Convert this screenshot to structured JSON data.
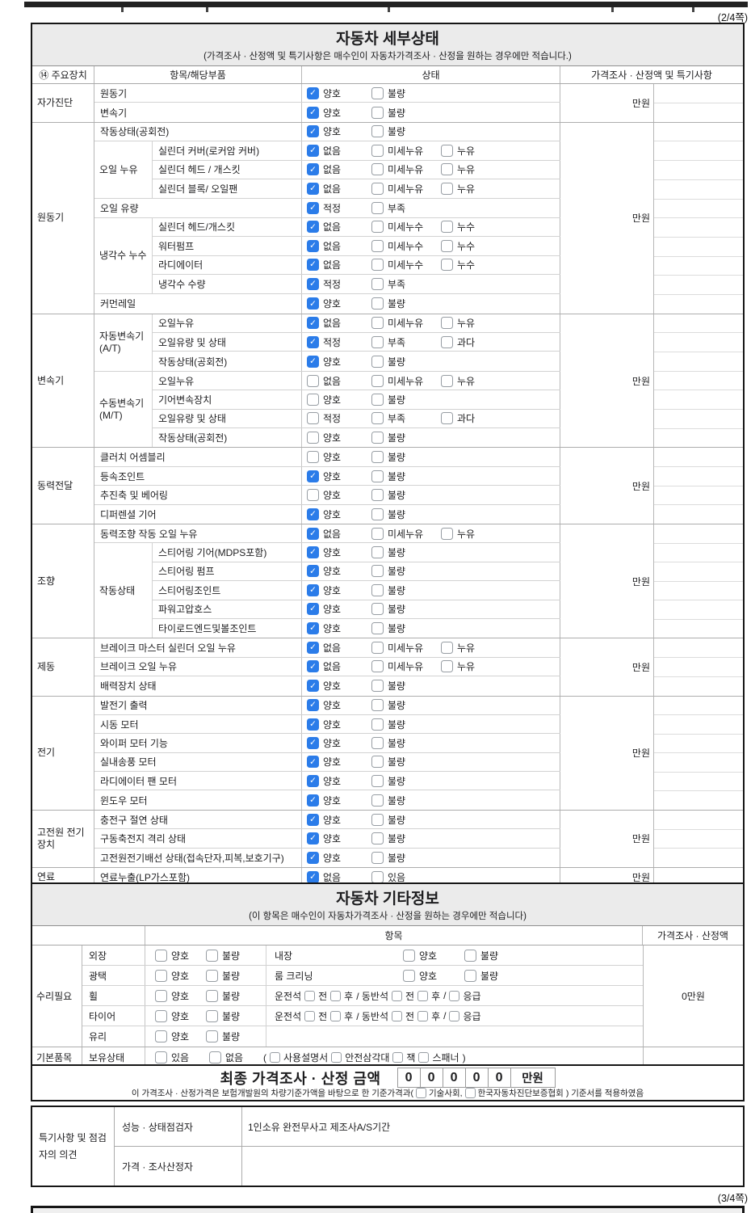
{
  "page": {
    "top_label": "(2/4쪽)",
    "bottom_label": "(3/4쪽)"
  },
  "colors": {
    "checkbox_checked": "#2b7ce9",
    "band_bg": "#ebebeb",
    "border_dark": "#161616"
  },
  "detail": {
    "title": "자동차 세부상태",
    "subtitle": "(가격조사 · 산정액 및 특기사항은 매수인이 자동차가격조사 · 산정을 원하는 경우에만 적습니다.)",
    "col_device": "⑭ 주요장치",
    "col_item": "항목/해당부품",
    "col_status": "상태",
    "col_price": "가격조사 · 산정액 및 특기사항",
    "groups": [
      {
        "name": "자가진단",
        "price": "만원",
        "entries": [
          {
            "item": "원동기",
            "options": [
              {
                "label": "양호",
                "checked": true
              },
              {
                "label": "불량",
                "checked": false
              }
            ]
          },
          {
            "item": "변속기",
            "options": [
              {
                "label": "양호",
                "checked": true
              },
              {
                "label": "불량",
                "checked": false
              }
            ]
          }
        ]
      },
      {
        "name": "원동기",
        "price": "만원",
        "entries": [
          {
            "item": "작동상태(공회전)",
            "options": [
              {
                "label": "양호",
                "checked": true
              },
              {
                "label": "불량",
                "checked": false
              }
            ]
          },
          {
            "sub": "오일 누유",
            "rows": [
              {
                "item": "실린더 커버(로커암 커버)",
                "options": [
                  {
                    "label": "없음",
                    "checked": true
                  },
                  {
                    "label": "미세누유",
                    "checked": false
                  },
                  {
                    "label": "누유",
                    "checked": false
                  }
                ]
              },
              {
                "item": "실린더 헤드 / 개스킷",
                "options": [
                  {
                    "label": "없음",
                    "checked": true
                  },
                  {
                    "label": "미세누유",
                    "checked": false
                  },
                  {
                    "label": "누유",
                    "checked": false
                  }
                ]
              },
              {
                "item": "실린더 블록/ 오일팬",
                "options": [
                  {
                    "label": "없음",
                    "checked": true
                  },
                  {
                    "label": "미세누유",
                    "checked": false
                  },
                  {
                    "label": "누유",
                    "checked": false
                  }
                ]
              }
            ]
          },
          {
            "item": "오일 유량",
            "options": [
              {
                "label": "적정",
                "checked": true
              },
              {
                "label": "부족",
                "checked": false
              }
            ]
          },
          {
            "sub": "냉각수 누수",
            "rows": [
              {
                "item": "실린더 헤드/개스킷",
                "options": [
                  {
                    "label": "없음",
                    "checked": true
                  },
                  {
                    "label": "미세누수",
                    "checked": false
                  },
                  {
                    "label": "누수",
                    "checked": false
                  }
                ]
              },
              {
                "item": "워터펌프",
                "options": [
                  {
                    "label": "없음",
                    "checked": true
                  },
                  {
                    "label": "미세누수",
                    "checked": false
                  },
                  {
                    "label": "누수",
                    "checked": false
                  }
                ]
              },
              {
                "item": "라디에이터",
                "options": [
                  {
                    "label": "없음",
                    "checked": true
                  },
                  {
                    "label": "미세누수",
                    "checked": false
                  },
                  {
                    "label": "누수",
                    "checked": false
                  }
                ]
              },
              {
                "item": "냉각수 수량",
                "options": [
                  {
                    "label": "적정",
                    "checked": true
                  },
                  {
                    "label": "부족",
                    "checked": false
                  }
                ]
              }
            ]
          },
          {
            "item": "커먼레일",
            "options": [
              {
                "label": "양호",
                "checked": true
              },
              {
                "label": "불량",
                "checked": false
              }
            ]
          }
        ]
      },
      {
        "name": "변속기",
        "price": "만원",
        "entries": [
          {
            "sub": "자동변속기 (A/T)",
            "rows": [
              {
                "item": "오일누유",
                "options": [
                  {
                    "label": "없음",
                    "checked": true
                  },
                  {
                    "label": "미세누유",
                    "checked": false
                  },
                  {
                    "label": "누유",
                    "checked": false
                  }
                ]
              },
              {
                "item": "오일유량 및 상태",
                "options": [
                  {
                    "label": "적정",
                    "checked": true
                  },
                  {
                    "label": "부족",
                    "checked": false
                  },
                  {
                    "label": "과다",
                    "checked": false
                  }
                ]
              },
              {
                "item": "작동상태(공회전)",
                "options": [
                  {
                    "label": "양호",
                    "checked": true
                  },
                  {
                    "label": "불량",
                    "checked": false
                  }
                ]
              }
            ]
          },
          {
            "sub": "수동변속기 (M/T)",
            "rows": [
              {
                "item": "오일누유",
                "options": [
                  {
                    "label": "없음",
                    "checked": false
                  },
                  {
                    "label": "미세누유",
                    "checked": false
                  },
                  {
                    "label": "누유",
                    "checked": false
                  }
                ]
              },
              {
                "item": "기어변속장치",
                "options": [
                  {
                    "label": "양호",
                    "checked": false
                  },
                  {
                    "label": "불량",
                    "checked": false
                  }
                ]
              },
              {
                "item": "오일유량 및 상태",
                "options": [
                  {
                    "label": "적정",
                    "checked": false
                  },
                  {
                    "label": "부족",
                    "checked": false
                  },
                  {
                    "label": "과다",
                    "checked": false
                  }
                ]
              },
              {
                "item": "작동상태(공회전)",
                "options": [
                  {
                    "label": "양호",
                    "checked": false
                  },
                  {
                    "label": "불량",
                    "checked": false
                  }
                ]
              }
            ]
          }
        ]
      },
      {
        "name": "동력전달",
        "price": "만원",
        "entries": [
          {
            "item": "클러치 어셈블리",
            "options": [
              {
                "label": "양호",
                "checked": false
              },
              {
                "label": "불량",
                "checked": false
              }
            ]
          },
          {
            "item": "등속조인트",
            "options": [
              {
                "label": "양호",
                "checked": true
              },
              {
                "label": "불량",
                "checked": false
              }
            ]
          },
          {
            "item": "추진축 및 베어링",
            "options": [
              {
                "label": "양호",
                "checked": false
              },
              {
                "label": "불량",
                "checked": false
              }
            ]
          },
          {
            "item": "디퍼렌셜 기어",
            "options": [
              {
                "label": "양호",
                "checked": true
              },
              {
                "label": "불량",
                "checked": false
              }
            ]
          }
        ]
      },
      {
        "name": "조향",
        "price": "만원",
        "entries": [
          {
            "item": "동력조향 작동 오일 누유",
            "options": [
              {
                "label": "없음",
                "checked": true
              },
              {
                "label": "미세누유",
                "checked": false
              },
              {
                "label": "누유",
                "checked": false
              }
            ]
          },
          {
            "sub": "작동상태",
            "rows": [
              {
                "item": "스티어링 기어(MDPS포함)",
                "options": [
                  {
                    "label": "양호",
                    "checked": true
                  },
                  {
                    "label": "불량",
                    "checked": false
                  }
                ]
              },
              {
                "item": "스티어링 펌프",
                "options": [
                  {
                    "label": "양호",
                    "checked": true
                  },
                  {
                    "label": "불량",
                    "checked": false
                  }
                ]
              },
              {
                "item": "스티어링조인트",
                "options": [
                  {
                    "label": "양호",
                    "checked": true
                  },
                  {
                    "label": "불량",
                    "checked": false
                  }
                ]
              },
              {
                "item": "파워고압호스",
                "options": [
                  {
                    "label": "양호",
                    "checked": true
                  },
                  {
                    "label": "불량",
                    "checked": false
                  }
                ]
              },
              {
                "item": "타이로드엔드및볼조인트",
                "options": [
                  {
                    "label": "양호",
                    "checked": true
                  },
                  {
                    "label": "불량",
                    "checked": false
                  }
                ]
              }
            ]
          }
        ]
      },
      {
        "name": "제동",
        "price": "만원",
        "entries": [
          {
            "item": "브레이크 마스터 실린더 오일 누유",
            "options": [
              {
                "label": "없음",
                "checked": true
              },
              {
                "label": "미세누유",
                "checked": false
              },
              {
                "label": "누유",
                "checked": false
              }
            ]
          },
          {
            "item": "브레이크 오일 누유",
            "options": [
              {
                "label": "없음",
                "checked": true
              },
              {
                "label": "미세누유",
                "checked": false
              },
              {
                "label": "누유",
                "checked": false
              }
            ]
          },
          {
            "item": "배력장치 상태",
            "options": [
              {
                "label": "양호",
                "checked": true
              },
              {
                "label": "불량",
                "checked": false
              }
            ]
          }
        ]
      },
      {
        "name": "전기",
        "price": "만원",
        "entries": [
          {
            "item": "발전기 출력",
            "options": [
              {
                "label": "양호",
                "checked": true
              },
              {
                "label": "불량",
                "checked": false
              }
            ]
          },
          {
            "item": "시동 모터",
            "options": [
              {
                "label": "양호",
                "checked": true
              },
              {
                "label": "불량",
                "checked": false
              }
            ]
          },
          {
            "item": "와이퍼 모터 기능",
            "options": [
              {
                "label": "양호",
                "checked": true
              },
              {
                "label": "불량",
                "checked": false
              }
            ]
          },
          {
            "item": "실내송풍 모터",
            "options": [
              {
                "label": "양호",
                "checked": true
              },
              {
                "label": "불량",
                "checked": false
              }
            ]
          },
          {
            "item": "라디에이터 팬 모터",
            "options": [
              {
                "label": "양호",
                "checked": true
              },
              {
                "label": "불량",
                "checked": false
              }
            ]
          },
          {
            "item": "윈도우 모터",
            "options": [
              {
                "label": "양호",
                "checked": true
              },
              {
                "label": "불량",
                "checked": false
              }
            ]
          }
        ]
      },
      {
        "name": "고전원 전기장치",
        "price": "만원",
        "entries": [
          {
            "item": "충전구 절연 상태",
            "options": [
              {
                "label": "양호",
                "checked": true
              },
              {
                "label": "불량",
                "checked": false
              }
            ]
          },
          {
            "item": "구동축전지 격리 상태",
            "options": [
              {
                "label": "양호",
                "checked": true
              },
              {
                "label": "불량",
                "checked": false
              }
            ]
          },
          {
            "item": "고전원전기배선 상태(접속단자,피복,보호기구)",
            "options": [
              {
                "label": "양호",
                "checked": true
              },
              {
                "label": "불량",
                "checked": false
              }
            ]
          }
        ]
      },
      {
        "name": "연료",
        "price": "만원",
        "entries": [
          {
            "item": "연료누출(LP가스포함)",
            "options": [
              {
                "label": "없음",
                "checked": true
              },
              {
                "label": "있음",
                "checked": false
              }
            ]
          }
        ]
      }
    ]
  },
  "etc": {
    "title": "자동차 기타정보",
    "subtitle": "(이 항목은 매수인이 자동차가격조사 · 산정을 원하는 경우에만 적습니다)",
    "col_item": "항목",
    "col_price": "가격조사 · 산정액",
    "repair": {
      "name": "수리필요",
      "price": "0만원",
      "rows": [
        {
          "item": "외장",
          "options": [
            {
              "label": "양호",
              "checked": false
            },
            {
              "label": "불량",
              "checked": false
            }
          ],
          "item2": "내장",
          "options2": [
            {
              "label": "양호",
              "checked": false
            },
            {
              "label": "불량",
              "checked": false
            }
          ]
        },
        {
          "item": "광택",
          "options": [
            {
              "label": "양호",
              "checked": false
            },
            {
              "label": "불량",
              "checked": false
            }
          ],
          "item2": "룸 크리닝",
          "options2": [
            {
              "label": "양호",
              "checked": false
            },
            {
              "label": "불량",
              "checked": false
            }
          ]
        },
        {
          "item": "휠",
          "options": [
            {
              "label": "양호",
              "checked": false
            },
            {
              "label": "불량",
              "checked": false
            }
          ],
          "seat": {
            "seg1": "운전석",
            "opts1": [
              "전",
              "후"
            ],
            "sep1": "/",
            "seg2": "동반석",
            "opts2": [
              "전",
              "후"
            ],
            "sep2": "/",
            "emergency": "응급"
          }
        },
        {
          "item": "타이어",
          "options": [
            {
              "label": "양호",
              "checked": false
            },
            {
              "label": "불량",
              "checked": false
            }
          ],
          "seat": {
            "seg1": "운전석",
            "opts1": [
              "전",
              "후"
            ],
            "sep1": "/",
            "seg2": "동반석",
            "opts2": [
              "전",
              "후"
            ],
            "sep2": "/",
            "emergency": "응급"
          }
        },
        {
          "item": "유리",
          "options": [
            {
              "label": "양호",
              "checked": false
            },
            {
              "label": "불량",
              "checked": false
            }
          ]
        }
      ]
    },
    "basic": {
      "name": "기본품목",
      "item": "보유상태",
      "options": [
        {
          "label": "있음",
          "checked": false
        },
        {
          "label": "없음",
          "checked": false
        }
      ],
      "paren_open": "(",
      "paren_items": [
        "사용설명서",
        "안전삼각대",
        "잭",
        "스패너"
      ],
      "paren_close": ")"
    }
  },
  "final": {
    "label": "최종 가격조사 · 산정 금액",
    "digits": [
      "0",
      "0",
      "0",
      "0",
      "0"
    ],
    "unit": "만원",
    "footnote_pre": "이 가격조사 · 산정가격은 보험개발원의 차량기준가액을 바탕으로 한 기준가격과(",
    "org1": "기술사회,",
    "org2": "한국자동차진단보증협회",
    "footnote_post": ") 기준서를 적용하였음"
  },
  "opinion": {
    "group_label": "특기사항 및 점검자의 의견",
    "rows": [
      {
        "label": "성능 · 상태점검자",
        "value": "1인소유 완전무사고 제조사A/S기간"
      },
      {
        "label": "가격 · 조사산정자",
        "value": ""
      }
    ]
  }
}
